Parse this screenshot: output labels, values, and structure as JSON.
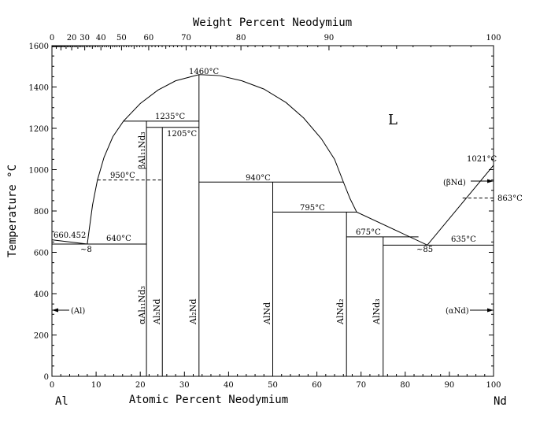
{
  "top_axis": {
    "label": "Weight Percent Neodymium",
    "ticks": [
      0,
      20,
      30,
      40,
      50,
      60,
      70,
      80,
      90,
      100
    ],
    "tick_labels": [
      "0",
      "20",
      "30",
      "40",
      "50",
      "60",
      "70",
      "80",
      "90",
      "100"
    ]
  },
  "bottom_axis": {
    "label": "Atomic Percent Neodymium",
    "ticks": [
      0,
      10,
      20,
      30,
      40,
      50,
      60,
      70,
      80,
      90,
      100
    ],
    "tick_labels": [
      "0",
      "10",
      "20",
      "30",
      "40",
      "50",
      "60",
      "70",
      "80",
      "90",
      "100"
    ],
    "left_element": "Al",
    "right_element": "Nd"
  },
  "y_axis": {
    "label": "Temperature °C",
    "ticks": [
      0,
      200,
      400,
      600,
      800,
      1000,
      1200,
      1400,
      1600
    ],
    "tick_labels": [
      "0",
      "200",
      "400",
      "600",
      "800",
      "1000",
      "1200",
      "1400",
      "1600"
    ],
    "range": [
      0,
      1600
    ]
  },
  "chart_data": {
    "type": "phase-diagram",
    "x_range": [
      0,
      100
    ],
    "y_range": [
      0,
      1600
    ],
    "liquidus": [
      [
        8,
        640
      ],
      [
        8.5,
        720
      ],
      [
        9.2,
        830
      ],
      [
        10.3,
        950
      ],
      [
        11.8,
        1060
      ],
      [
        13.8,
        1160
      ],
      [
        16.2,
        1235
      ],
      [
        20,
        1320
      ],
      [
        24,
        1385
      ],
      [
        28,
        1430
      ],
      [
        33.3,
        1460
      ],
      [
        38,
        1455
      ],
      [
        43,
        1430
      ],
      [
        48,
        1390
      ],
      [
        53,
        1325
      ],
      [
        57,
        1250
      ],
      [
        61,
        1150
      ],
      [
        64,
        1050
      ],
      [
        66,
        940
      ],
      [
        67.5,
        860
      ],
      [
        69,
        795
      ],
      [
        85,
        635
      ],
      [
        100,
        1021
      ]
    ],
    "al_solvus": [
      [
        0,
        660.452
      ],
      [
        8,
        640
      ]
    ],
    "compounds": [
      {
        "name": "Al11Nd3",
        "x": 21.4,
        "top": 1235
      },
      {
        "name": "Al3Nd",
        "x": 25,
        "top": 1205
      },
      {
        "name": "Al2Nd",
        "x": 33.3,
        "top": 1460
      },
      {
        "name": "AlNd",
        "x": 50,
        "top": 940
      },
      {
        "name": "AlNd2",
        "x": 66.7,
        "top": 795
      },
      {
        "name": "AlNd3",
        "x": 75,
        "top": 675
      }
    ],
    "isotherms": [
      {
        "T": 640,
        "from": 0,
        "to": 21.4,
        "dashed": false
      },
      {
        "T": 1235,
        "from": 16.2,
        "to": 33.3,
        "dashed": false
      },
      {
        "T": 1205,
        "from": 21.4,
        "to": 33.3,
        "dashed": false
      },
      {
        "T": 950,
        "from": 10.3,
        "to": 25,
        "dashed": true
      },
      {
        "T": 940,
        "from": 33.3,
        "to": 66,
        "dashed": false
      },
      {
        "T": 795,
        "from": 50,
        "to": 69,
        "dashed": false
      },
      {
        "T": 675,
        "from": 66.7,
        "to": 83,
        "dashed": false
      },
      {
        "T": 635,
        "from": 75,
        "to": 100,
        "dashed": false
      },
      {
        "T": 863,
        "from": 93,
        "to": 100,
        "dashed": true
      }
    ]
  },
  "annotations": {
    "t1460": "1460°C",
    "t1235": "1235°C",
    "t1205": "1205°C",
    "t950": "950°C",
    "t940": "940°C",
    "t795": "795°C",
    "t675": "675°C",
    "t640": "640°C",
    "t635": "635°C",
    "t660": "660.452",
    "t1021": "1021°C",
    "t863": "863°C",
    "c8": "~8",
    "c85": "~85",
    "liquid": "L"
  },
  "phases": {
    "beta_al11nd3": "βAl₁₁Nd₃",
    "alpha_al11nd3": "αAl₁₁Nd₃",
    "al3nd": "Al₃Nd",
    "al2nd": "Al₂Nd",
    "alnd": "AlNd",
    "alnd2": "AlNd₂",
    "alnd3": "AlNd₃",
    "al": "(Al)",
    "alpha_nd": "(αNd)",
    "beta_nd": "(βNd)"
  }
}
